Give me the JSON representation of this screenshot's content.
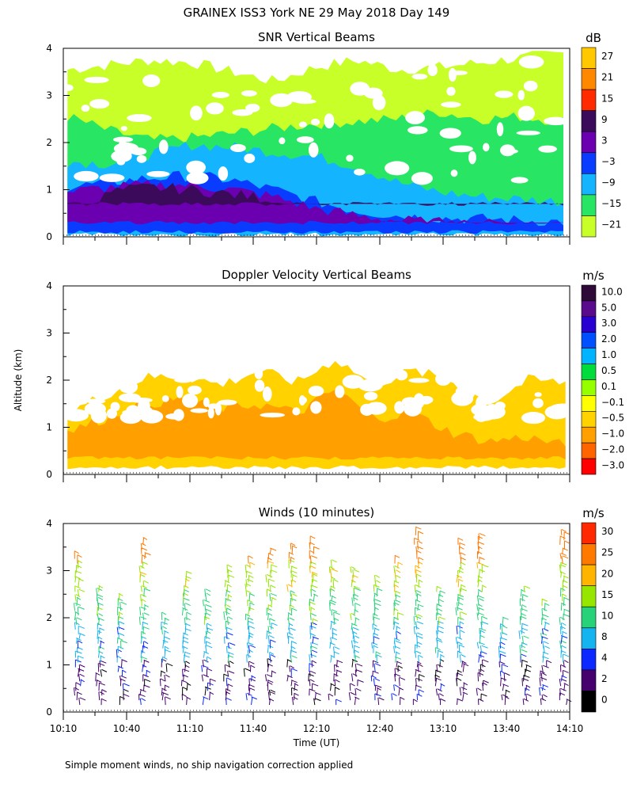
{
  "figure_title": "GRAINEX ISS3 York NE  29 May 2018 Day 149",
  "ylabel": "Altitude (km)",
  "xlabel": "Time (UT)",
  "footnote": "Simple moment winds, no ship navigation correction applied",
  "time_axis": {
    "range_minutes": [
      0,
      240
    ],
    "tick_labels": [
      "10:10",
      "10:40",
      "11:10",
      "11:40",
      "12:10",
      "12:40",
      "13:10",
      "13:40",
      "14:10"
    ],
    "tick_minutes": [
      0,
      30,
      60,
      90,
      120,
      150,
      180,
      210,
      240
    ],
    "minor_step_minutes": 15
  },
  "altitude_axis": {
    "range_km": [
      0,
      4
    ],
    "tick_labels": [
      "0",
      "1",
      "2",
      "3",
      "4"
    ],
    "minor_step_km": 0.5
  },
  "chart_data": [
    {
      "type": "heatmap",
      "title": "SNR Vertical Beams",
      "unit": "dB",
      "color_levels": [
        "27",
        "21",
        "15",
        "9",
        "3",
        "−3",
        "−9",
        "−15",
        "−21"
      ],
      "colors": [
        "#ffc800",
        "#ff8800",
        "#ff2a00",
        "#3c0a5a",
        "#6a00b0",
        "#0a3cff",
        "#14b4ff",
        "#28e664",
        "#c8ff28"
      ],
      "layers": [
        {
          "name": "outer",
          "level": "−21",
          "top_km": [
            3.55,
            3.65,
            3.75,
            3.7,
            3.5,
            3.3,
            3.6,
            3.75,
            3.55,
            3.6,
            3.7,
            3.8,
            3.9
          ],
          "bottom_km": 0.15
        },
        {
          "name": "green",
          "level": "−15",
          "top_km": [
            2.55,
            2.25,
            2.05,
            2.1,
            2.2,
            2.3,
            2.4,
            2.45,
            2.5,
            2.65,
            2.5,
            2.55,
            2.45
          ],
          "bottom_km": 0.1
        },
        {
          "name": "cyan",
          "level": "−9",
          "top_km": [
            1.6,
            1.55,
            1.75,
            1.95,
            1.9,
            1.8,
            1.7,
            1.5,
            1.15,
            0.95,
            0.85,
            0.8,
            0.75
          ],
          "bottom_km": 0.05
        },
        {
          "name": "blue",
          "level": "−3",
          "top_km": [
            1.05,
            1.15,
            1.25,
            1.3,
            1.2,
            1.0,
            0.75,
            0.55,
            0.45,
            0.4,
            0.38,
            0.35,
            0.32
          ],
          "bottom_km": 0.1
        },
        {
          "name": "purple",
          "level": "3",
          "top_km": [
            0.95,
            1.05,
            1.1,
            1.1,
            1.0,
            0.85,
            0.6,
            0.45,
            0.35,
            0.3,
            0.28,
            0.25,
            0.22
          ],
          "bottom_km": 0.3
        },
        {
          "name": "dark",
          "level": "9",
          "top_km": [
            0.0,
            0.95,
            1.05,
            1.0,
            0.9,
            0.8,
            0.0,
            0.0,
            0.0,
            0.0,
            0.0,
            0.0,
            0.0
          ],
          "bottom_km": 0.7
        }
      ],
      "data_start_minutes": 2,
      "data_end_minutes": 237
    },
    {
      "type": "heatmap",
      "title": "Doppler Velocity Vertical Beams",
      "unit": "m/s",
      "color_levels": [
        "10.0",
        "5.0",
        "3.0",
        "2.0",
        "1.0",
        "0.5",
        "0.1",
        "−0.1",
        "−0.5",
        "−1.0",
        "−2.0",
        "−3.0"
      ],
      "colors": [
        "#2d0a37",
        "#5a0a8c",
        "#2800d2",
        "#0050ff",
        "#00b4ff",
        "#00dc3c",
        "#96ff00",
        "#ffff00",
        "#ffd200",
        "#ffa000",
        "#ff6400",
        "#ff0000"
      ],
      "layers": [
        {
          "name": "main",
          "level": "−0.5",
          "top_km": [
            1.3,
            1.7,
            2.05,
            2.1,
            1.9,
            2.2,
            1.95,
            2.45,
            1.9,
            2.2,
            2.0,
            1.5,
            2.0,
            1.95
          ],
          "bottom_km": 0.15
        },
        {
          "name": "core",
          "level": "−1.0",
          "top_km": [
            0.9,
            1.2,
            1.5,
            1.6,
            1.4,
            1.5,
            1.3,
            1.8,
            1.2,
            1.3,
            0.9,
            0.7,
            0.8,
            0.6
          ],
          "bottom_km": 0.35
        }
      ],
      "data_start_minutes": 2,
      "data_end_minutes": 238
    },
    {
      "type": "scatter",
      "title": "Winds (10 minutes)",
      "unit": "m/s",
      "color_levels": [
        "30",
        "25",
        "20",
        "15",
        "10",
        "8",
        "4",
        "2",
        "0"
      ],
      "colors": [
        "#ff2800",
        "#ff7800",
        "#ffb400",
        "#96e600",
        "#28d278",
        "#14b4f0",
        "#0a28ff",
        "#46006e",
        "#000000"
      ],
      "profile_times_minutes": [
        6,
        16,
        26,
        37,
        47,
        57,
        67,
        77,
        87,
        97,
        107,
        117,
        127,
        137,
        147,
        157,
        167,
        177,
        187,
        197,
        207,
        217,
        227,
        236
      ],
      "profile_tops_km": [
        3.3,
        2.6,
        2.4,
        3.6,
        2.0,
        2.9,
        2.5,
        3.0,
        3.2,
        3.4,
        3.5,
        3.6,
        3.1,
        3.0,
        2.8,
        3.2,
        3.8,
        2.6,
        3.6,
        3.7,
        1.9,
        2.6,
        2.3,
        3.8
      ],
      "speed_bands_m_s": [
        {
          "below_km": 1.0,
          "speed": 3
        },
        {
          "below_km": 1.8,
          "speed": 9
        },
        {
          "below_km": 2.5,
          "speed": 14
        },
        {
          "below_km": 3.1,
          "speed": 19
        },
        {
          "below_km": 4.0,
          "speed": 27
        }
      ]
    }
  ]
}
